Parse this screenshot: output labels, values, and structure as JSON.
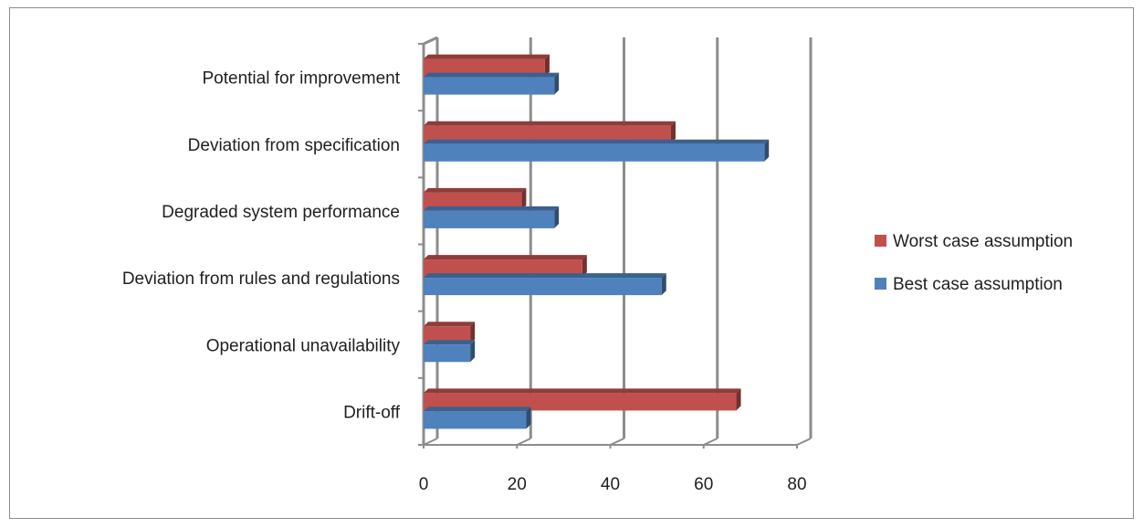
{
  "chart_data": {
    "type": "bar",
    "orientation": "horizontal",
    "style": "3d-clustered",
    "categories": [
      "Drift-off",
      "Operational unavailability",
      "Deviation from rules and regulations",
      "Degraded system performance",
      "Deviation from specification",
      "Potential for improvement"
    ],
    "series": [
      {
        "name": "Worst case assumption",
        "color": "#c0504d",
        "values": [
          67,
          10,
          34,
          21,
          53,
          26
        ]
      },
      {
        "name": "Best case assumption",
        "color": "#4f81bd",
        "values": [
          22,
          10,
          51,
          28,
          73,
          28
        ]
      }
    ],
    "xlim": [
      0,
      80
    ],
    "xticks": [
      "0",
      "20",
      "40",
      "60",
      "80"
    ],
    "grid": true,
    "legend": "right"
  }
}
